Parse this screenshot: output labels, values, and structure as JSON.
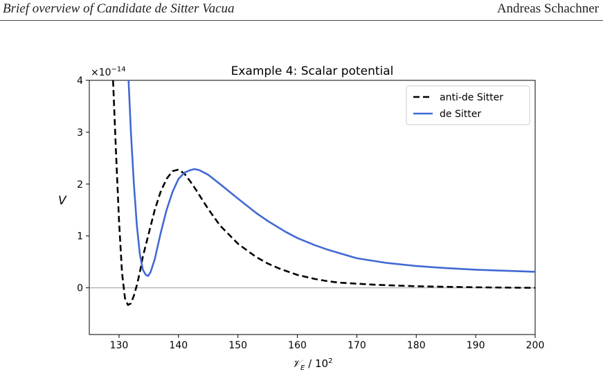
{
  "header": {
    "left": "Brief overview of Candidate de Sitter Vacua",
    "right": "Andreas Schachner"
  },
  "chart_data": {
    "type": "line",
    "title": "Example 4: Scalar potential",
    "xlabel_main": "𝒱",
    "xlabel_sub": "E",
    "xlabel_tail": " / 10",
    "xlabel_sup": "2",
    "ylabel": "V",
    "y_offset_base": "×10",
    "y_offset_exp": "−14",
    "xlim": [
      125,
      200
    ],
    "ylim": [
      -0.9,
      4.0
    ],
    "xticks": [
      130,
      140,
      150,
      160,
      170,
      180,
      190,
      200
    ],
    "yticks": [
      0,
      1,
      2,
      3,
      4
    ],
    "grid": false,
    "zero_line": true,
    "legend_position": "top-right",
    "series": [
      {
        "name": "anti-de Sitter",
        "color": "#000000",
        "style": "dashed",
        "x": [
          129.0,
          129.5,
          130.0,
          130.5,
          131.0,
          131.5,
          132.0,
          132.5,
          133.0,
          133.5,
          134.0,
          135.0,
          136.0,
          137.0,
          138.0,
          139.0,
          140.0,
          141.0,
          142.0,
          143.0,
          144.0,
          145.0,
          147.0,
          150.0,
          153.0,
          155.0,
          157.0,
          160.0,
          163.0,
          165.0,
          167.0,
          170.0,
          173.0,
          175.0,
          180.0,
          185.0,
          190.0,
          195.0,
          200.0
        ],
        "y": [
          4.0,
          2.6,
          1.3,
          0.3,
          -0.2,
          -0.33,
          -0.3,
          -0.15,
          0.05,
          0.3,
          0.6,
          1.05,
          1.5,
          1.85,
          2.1,
          2.25,
          2.28,
          2.2,
          2.05,
          1.88,
          1.7,
          1.52,
          1.2,
          0.85,
          0.6,
          0.47,
          0.37,
          0.25,
          0.17,
          0.13,
          0.1,
          0.08,
          0.06,
          0.05,
          0.03,
          0.02,
          0.01,
          0.005,
          0.0
        ]
      },
      {
        "name": "de Sitter",
        "color": "#4169d4",
        "style": "solid",
        "x": [
          131.6,
          132.0,
          132.5,
          133.0,
          133.5,
          134.0,
          134.5,
          134.9,
          135.3,
          136.0,
          137.0,
          138.0,
          139.0,
          140.0,
          141.0,
          142.0,
          142.7,
          143.5,
          145.0,
          147.0,
          150.0,
          153.0,
          155.0,
          158.0,
          160.0,
          163.0,
          165.0,
          170.0,
          175.0,
          180.0,
          185.0,
          190.0,
          195.0,
          200.0
        ],
        "y": [
          4.0,
          3.0,
          2.0,
          1.2,
          0.65,
          0.35,
          0.25,
          0.23,
          0.3,
          0.55,
          1.05,
          1.5,
          1.85,
          2.1,
          2.22,
          2.27,
          2.29,
          2.27,
          2.18,
          2.0,
          1.72,
          1.45,
          1.29,
          1.08,
          0.96,
          0.82,
          0.74,
          0.57,
          0.48,
          0.42,
          0.38,
          0.35,
          0.33,
          0.31
        ]
      }
    ]
  }
}
